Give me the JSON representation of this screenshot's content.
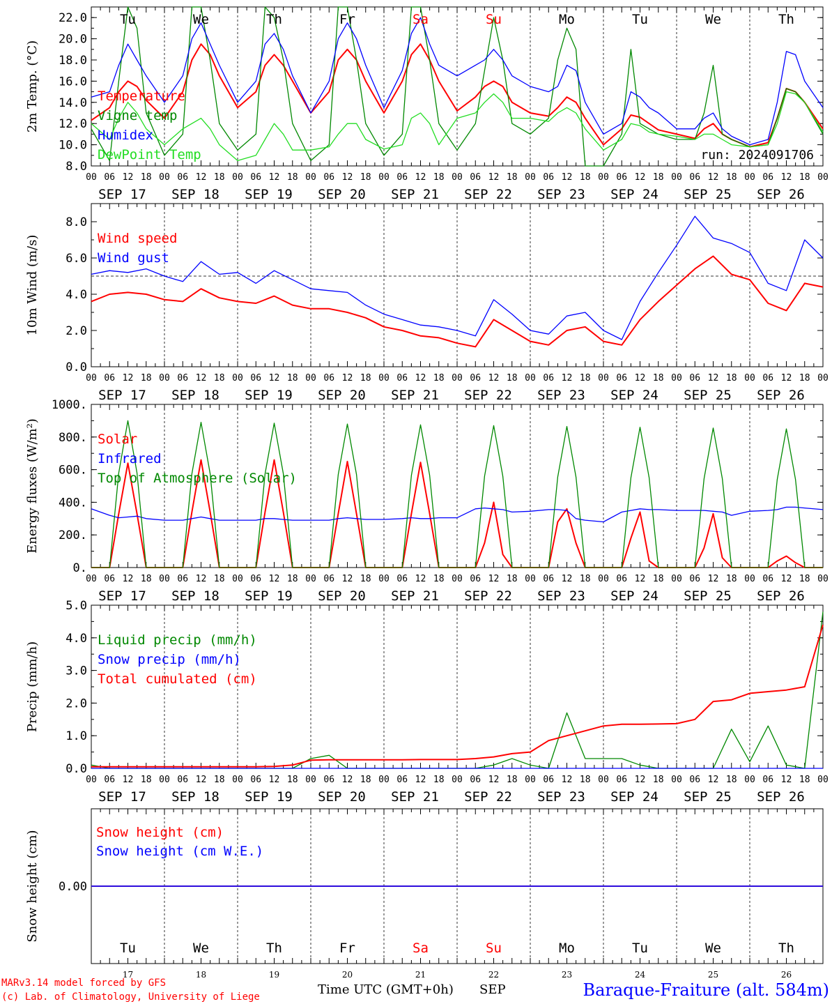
{
  "colors": {
    "red": "#ff0000",
    "green": "#008800",
    "blue": "#0000ff",
    "lime": "#22dd22",
    "purple": "#7a1fa2",
    "black": "#000000"
  },
  "days": [
    "Tu",
    "We",
    "Th",
    "Fr",
    "Sa",
    "Su",
    "Mo",
    "Tu",
    "We",
    "Th"
  ],
  "weekend_day_indices": [
    4,
    5
  ],
  "dates": [
    "SEP 17",
    "SEP 18",
    "SEP 19",
    "SEP 20",
    "SEP 21",
    "SEP 22",
    "SEP 23",
    "SEP 24",
    "SEP 25",
    "SEP 26"
  ],
  "day_numbers": [
    "17",
    "18",
    "19",
    "20",
    "21",
    "22",
    "23",
    "24",
    "25",
    "26"
  ],
  "hour_labels": [
    "00",
    "06",
    "12",
    "18"
  ],
  "footer": {
    "model": "MARv3.14 model forced by GFS",
    "copyright": "(c) Lab. of Climatology, University of Liege",
    "time_label": "Time UTC (GMT+0h)",
    "month": "SEP",
    "station": "Baraque-Fraiture (alt. 584m)"
  },
  "chart_data": [
    {
      "type": "line",
      "ylabel": "2m Temp. (°C)",
      "ylim": [
        8.0,
        23.0
      ],
      "yticks": [
        "8.0",
        "10.0",
        "12.0",
        "14.0",
        "16.0",
        "18.0",
        "20.0",
        "22.0"
      ],
      "run": "run: 2024091706",
      "x_hours": [
        0,
        6,
        9,
        12,
        15,
        18,
        24,
        30,
        33,
        36,
        39,
        42,
        48,
        54,
        57,
        60,
        63,
        66,
        72,
        78,
        81,
        84,
        87,
        90,
        96,
        102,
        105,
        108,
        111,
        114,
        120,
        126,
        129,
        132,
        135,
        138,
        144,
        150,
        153,
        156,
        159,
        162,
        168,
        174,
        177,
        180,
        183,
        186,
        192,
        198,
        201,
        204,
        207,
        210,
        216,
        222,
        225,
        228,
        231,
        234,
        240
      ],
      "series": [
        {
          "name": "Temperature",
          "color": "#ff0000",
          "values": [
            12.3,
            13.5,
            15.0,
            16.0,
            15.5,
            14.2,
            12.5,
            15.0,
            18.0,
            19.5,
            18.5,
            16.5,
            13.5,
            15.0,
            17.5,
            18.5,
            17.5,
            16.0,
            13.0,
            15.0,
            18.0,
            19.0,
            18.0,
            16.0,
            13.0,
            16.0,
            18.5,
            19.5,
            18.0,
            16.0,
            13.2,
            14.5,
            15.5,
            16.0,
            15.5,
            14.0,
            13.0,
            12.7,
            13.5,
            14.5,
            14.0,
            12.5,
            10.0,
            11.5,
            12.8,
            12.6,
            12.0,
            11.4,
            11.0,
            10.6,
            11.5,
            12.0,
            11.0,
            10.5,
            9.8,
            10.2,
            12.5,
            15.3,
            15.0,
            14.0,
            11.5
          ]
        },
        {
          "name": "Vigne temp",
          "color": "#008800",
          "values": [
            11.5,
            8.5,
            16.0,
            23.0,
            21.0,
            13.0,
            9.0,
            11.0,
            23.0,
            23.0,
            18.0,
            12.0,
            9.5,
            11.0,
            23.0,
            22.0,
            18.0,
            12.0,
            8.5,
            10.0,
            23.0,
            23.0,
            18.0,
            12.0,
            9.0,
            11.0,
            23.0,
            23.0,
            18.0,
            12.0,
            9.5,
            12.0,
            17.0,
            22.0,
            18.0,
            12.0,
            11.0,
            12.5,
            18.0,
            21.0,
            19.0,
            8.0,
            8.0,
            11.0,
            19.0,
            12.0,
            11.5,
            11.0,
            10.5,
            10.5,
            13.0,
            17.5,
            11.0,
            10.5,
            9.8,
            10.0,
            12.5,
            15.3,
            15.0,
            14.0,
            11.0
          ]
        },
        {
          "name": "Humidex",
          "color": "#0000ff",
          "values": [
            14.5,
            15.0,
            17.5,
            19.5,
            18.0,
            16.5,
            14.0,
            16.5,
            20.0,
            21.5,
            19.5,
            17.5,
            14.0,
            16.0,
            19.5,
            20.5,
            19.0,
            16.5,
            13.0,
            16.0,
            20.0,
            21.5,
            20.0,
            17.5,
            13.5,
            17.0,
            20.5,
            22.0,
            19.5,
            17.5,
            16.5,
            17.5,
            18.0,
            19.0,
            18.0,
            16.5,
            15.5,
            15.0,
            15.5,
            17.5,
            17.0,
            14.0,
            11.0,
            12.0,
            15.0,
            14.5,
            13.5,
            13.0,
            11.5,
            11.5,
            12.5,
            13.0,
            11.5,
            10.8,
            10.0,
            10.5,
            14.0,
            18.8,
            18.5,
            16.0,
            13.5
          ]
        },
        {
          "name": "DewPoint Temp",
          "color": "#22dd22",
          "values": [
            12.0,
            10.5,
            12.5,
            14.0,
            13.0,
            11.5,
            10.0,
            11.5,
            12.0,
            12.5,
            11.5,
            10.0,
            8.5,
            9.0,
            10.5,
            12.0,
            11.0,
            9.5,
            9.5,
            9.8,
            11.0,
            12.0,
            12.0,
            10.5,
            9.6,
            10.0,
            12.5,
            13.0,
            12.0,
            10.0,
            12.5,
            13.0,
            14.0,
            14.8,
            14.0,
            12.5,
            12.5,
            12.2,
            13.0,
            13.5,
            13.0,
            11.5,
            9.5,
            10.5,
            12.0,
            11.8,
            11.2,
            11.0,
            10.8,
            10.5,
            11.0,
            11.0,
            10.5,
            10.0,
            9.8,
            10.0,
            12.0,
            15.0,
            14.8,
            14.0,
            11.2
          ]
        }
      ]
    },
    {
      "type": "line",
      "ylabel": "10m Wind (m/s)",
      "ylim": [
        0.0,
        9.0
      ],
      "yticks": [
        "0.0",
        "2.0",
        "4.0",
        "6.0",
        "8.0"
      ],
      "reference_line": 5.0,
      "x_hours": [
        0,
        6,
        12,
        18,
        24,
        30,
        36,
        42,
        48,
        54,
        60,
        66,
        72,
        78,
        84,
        90,
        96,
        102,
        108,
        114,
        120,
        126,
        132,
        138,
        144,
        150,
        156,
        162,
        168,
        174,
        180,
        186,
        192,
        198,
        204,
        210,
        216,
        222,
        228,
        234,
        240
      ],
      "series": [
        {
          "name": "Wind speed",
          "color": "#ff0000",
          "values": [
            3.6,
            4.0,
            4.1,
            4.0,
            3.7,
            3.6,
            4.3,
            3.8,
            3.6,
            3.5,
            3.9,
            3.4,
            3.2,
            3.2,
            3.0,
            2.7,
            2.2,
            2.0,
            1.7,
            1.6,
            1.3,
            1.1,
            2.6,
            2.0,
            1.4,
            1.2,
            2.0,
            2.2,
            1.4,
            1.2,
            2.6,
            3.6,
            4.5,
            5.4,
            6.1,
            5.1,
            4.8,
            3.5,
            3.1,
            4.6,
            4.4
          ]
        },
        {
          "name": "Wind gust",
          "color": "#0000ff",
          "values": [
            5.1,
            5.3,
            5.2,
            5.4,
            5.0,
            4.7,
            5.8,
            5.1,
            5.2,
            4.6,
            5.3,
            4.8,
            4.3,
            4.2,
            4.1,
            3.4,
            2.9,
            2.6,
            2.3,
            2.2,
            2.0,
            1.7,
            3.7,
            2.9,
            2.0,
            1.8,
            2.8,
            3.0,
            2.0,
            1.5,
            3.6,
            5.2,
            6.7,
            8.3,
            7.1,
            6.8,
            6.3,
            4.6,
            4.2,
            7.0,
            6.0
          ]
        }
      ]
    },
    {
      "type": "line",
      "ylabel": "Energy fluxes (W/m²)",
      "ylim": [
        0,
        1000
      ],
      "yticks": [
        "0.",
        "200.",
        "400.",
        "600.",
        "800.",
        "1000."
      ],
      "x_hours": [
        0,
        6,
        9,
        12,
        15,
        18,
        24,
        30,
        33,
        36,
        39,
        42,
        48,
        54,
        57,
        60,
        63,
        66,
        72,
        78,
        81,
        84,
        87,
        90,
        96,
        102,
        105,
        108,
        111,
        114,
        120,
        126,
        129,
        132,
        135,
        138,
        144,
        150,
        153,
        156,
        159,
        162,
        168,
        174,
        177,
        180,
        183,
        186,
        192,
        198,
        201,
        204,
        207,
        210,
        216,
        222,
        225,
        228,
        231,
        234,
        240
      ],
      "series": [
        {
          "name": "Solar",
          "color": "#ff0000",
          "values": [
            0,
            0,
            330,
            640,
            330,
            0,
            0,
            0,
            340,
            660,
            340,
            0,
            0,
            0,
            340,
            660,
            340,
            0,
            0,
            0,
            330,
            650,
            330,
            0,
            0,
            0,
            330,
            645,
            330,
            0,
            0,
            0,
            150,
            400,
            80,
            0,
            0,
            0,
            280,
            360,
            150,
            0,
            0,
            0,
            180,
            340,
            40,
            0,
            0,
            0,
            120,
            330,
            60,
            0,
            0,
            0,
            40,
            70,
            30,
            0,
            0
          ]
        },
        {
          "name": "Infrared",
          "color": "#0000ff",
          "values": [
            360,
            320,
            305,
            310,
            315,
            300,
            290,
            290,
            300,
            310,
            300,
            290,
            290,
            290,
            300,
            300,
            295,
            290,
            290,
            290,
            300,
            305,
            300,
            295,
            295,
            300,
            305,
            300,
            300,
            305,
            305,
            360,
            365,
            360,
            355,
            340,
            345,
            355,
            355,
            350,
            300,
            290,
            280,
            340,
            350,
            360,
            355,
            355,
            350,
            350,
            350,
            345,
            340,
            320,
            345,
            350,
            355,
            370,
            370,
            365,
            355
          ]
        },
        {
          "name": "Top of Atmosphere (Solar)",
          "color": "#008800",
          "values": [
            0,
            0,
            580,
            900,
            580,
            0,
            0,
            0,
            575,
            890,
            575,
            0,
            0,
            0,
            575,
            885,
            575,
            0,
            0,
            0,
            570,
            880,
            570,
            0,
            0,
            0,
            565,
            875,
            565,
            0,
            0,
            0,
            560,
            870,
            560,
            0,
            0,
            0,
            555,
            865,
            555,
            0,
            0,
            0,
            550,
            860,
            550,
            0,
            0,
            0,
            545,
            855,
            545,
            0,
            0,
            0,
            540,
            850,
            540,
            0,
            0
          ]
        }
      ]
    },
    {
      "type": "line",
      "ylabel": "Precip (mm/h)",
      "ylim": [
        0.0,
        5.0
      ],
      "yticks": [
        "0.0",
        "1.0",
        "2.0",
        "3.0",
        "4.0",
        "5.0"
      ],
      "x_hours": [
        0,
        6,
        12,
        18,
        24,
        30,
        36,
        42,
        48,
        54,
        60,
        66,
        72,
        78,
        84,
        90,
        96,
        102,
        108,
        114,
        120,
        126,
        132,
        138,
        144,
        150,
        156,
        162,
        168,
        174,
        180,
        186,
        192,
        198,
        204,
        210,
        216,
        222,
        228,
        234,
        240
      ],
      "series": [
        {
          "name": "Liquid precip (mm/h)",
          "color": "#008800",
          "values": [
            0.1,
            0,
            0,
            0,
            0,
            0,
            0,
            0,
            0,
            0,
            0,
            0,
            0.3,
            0.4,
            0,
            0,
            0,
            0,
            0,
            0,
            0,
            0,
            0.1,
            0.3,
            0.1,
            0,
            1.7,
            0.3,
            0.3,
            0.3,
            0.1,
            0,
            0,
            0,
            0,
            1.2,
            0.2,
            1.3,
            0.1,
            0,
            4.8
          ]
        },
        {
          "name": "Snow precip (mm/h)",
          "color": "#0000ff",
          "values": [
            0,
            0,
            0,
            0,
            0,
            0,
            0,
            0,
            0,
            0,
            0,
            0,
            0,
            0,
            0,
            0,
            0,
            0,
            0,
            0,
            0,
            0,
            0,
            0,
            0,
            0,
            0,
            0,
            0,
            0,
            0,
            0,
            0,
            0,
            0,
            0,
            0,
            0,
            0,
            0,
            0
          ]
        },
        {
          "name": "Total cumulated (cm)",
          "color": "#ff0000",
          "values": [
            0.05,
            0.05,
            0.05,
            0.05,
            0.05,
            0.05,
            0.05,
            0.05,
            0.05,
            0.05,
            0.06,
            0.1,
            0.25,
            0.26,
            0.26,
            0.26,
            0.26,
            0.26,
            0.27,
            0.27,
            0.27,
            0.3,
            0.35,
            0.45,
            0.5,
            0.85,
            1.0,
            1.15,
            1.3,
            1.35,
            1.35,
            1.36,
            1.37,
            1.5,
            2.05,
            2.1,
            2.3,
            2.35,
            2.4,
            2.5,
            4.4
          ]
        }
      ]
    },
    {
      "type": "line",
      "ylabel": "Snow height (cm)",
      "ylim": [
        -1.0,
        1.0
      ],
      "yticks": [
        "0.00"
      ],
      "x_hours": [
        0,
        240
      ],
      "series": [
        {
          "name": "Snow height (cm)",
          "color": "#ff0000",
          "values": [
            0,
            0
          ]
        },
        {
          "name": "Snow height (cm W.E.)",
          "color": "#0000ff",
          "values": [
            0,
            0
          ]
        }
      ]
    }
  ]
}
